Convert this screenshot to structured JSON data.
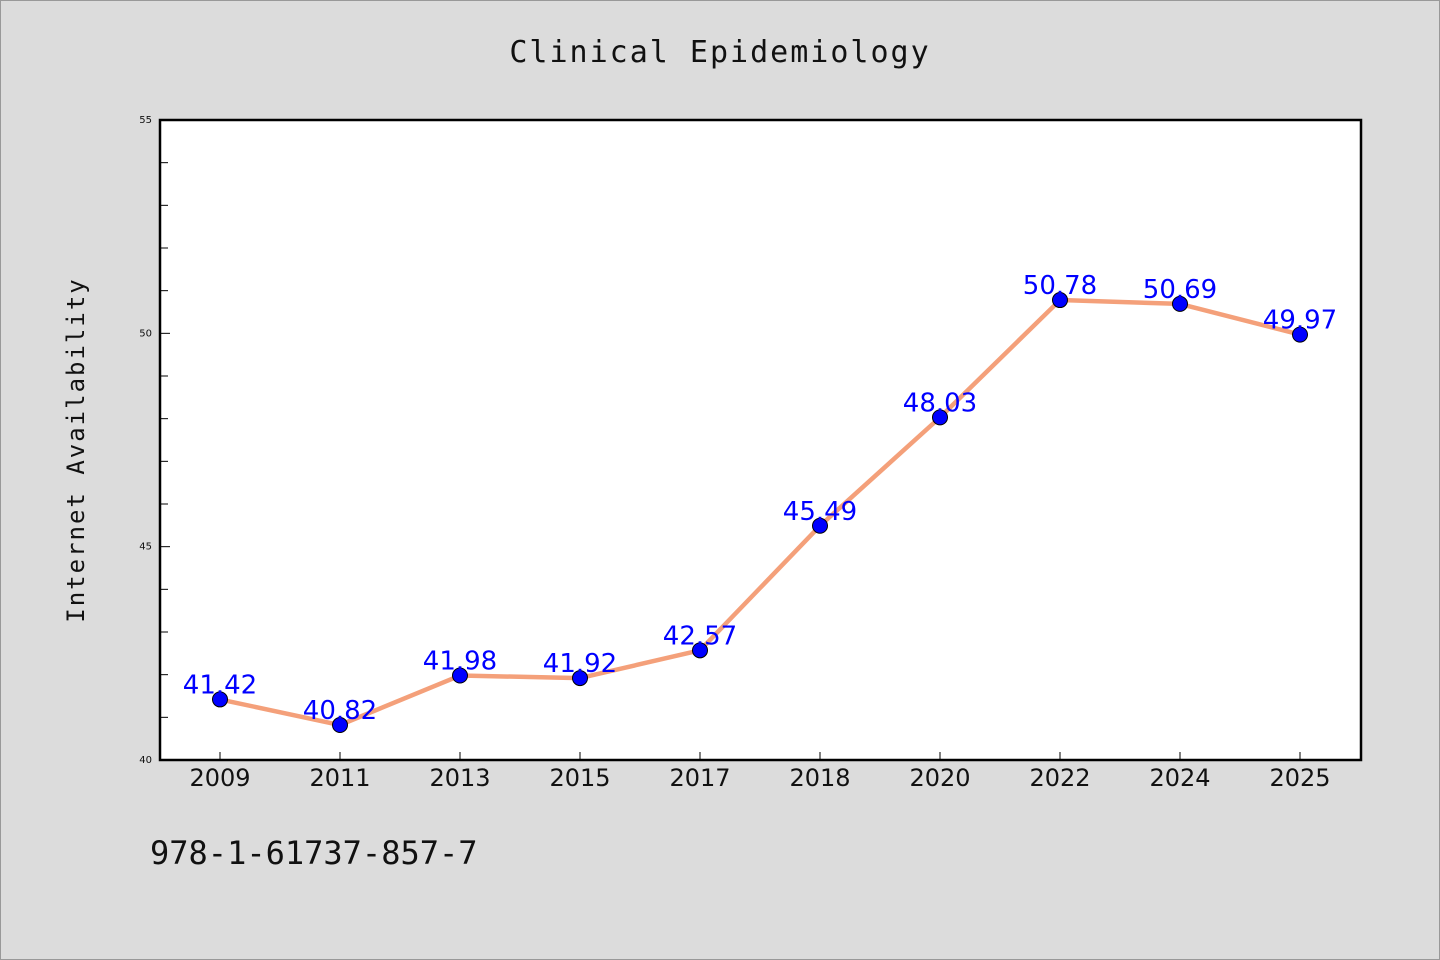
{
  "chart_data": {
    "type": "line",
    "title": "Clinical Epidemiology",
    "xlabel": "",
    "ylabel": "Internet Availability",
    "categories": [
      "2009",
      "2011",
      "2013",
      "2015",
      "2017",
      "2018",
      "2020",
      "2022",
      "2024",
      "2025"
    ],
    "series": [
      {
        "values": [
          41.42,
          40.82,
          41.98,
          41.92,
          42.57,
          45.49,
          48.03,
          50.78,
          50.69,
          49.97
        ],
        "labels": [
          "41.42",
          "40.82",
          "41.98",
          "41.92",
          "42.57",
          "45.49",
          "48.03",
          "50.78",
          "50.69",
          "49.97"
        ]
      }
    ],
    "ylim": [
      40,
      55
    ],
    "yticks": [
      "40",
      "45",
      "50",
      "55"
    ],
    "grid": false,
    "colors": {
      "line": "#f4a07a",
      "marker": "#0000ff",
      "label": "#0000ff",
      "background": "#dcdcdc",
      "plot_background": "#ffffff"
    }
  },
  "footer": {
    "text": "978-1-61737-857-7"
  }
}
